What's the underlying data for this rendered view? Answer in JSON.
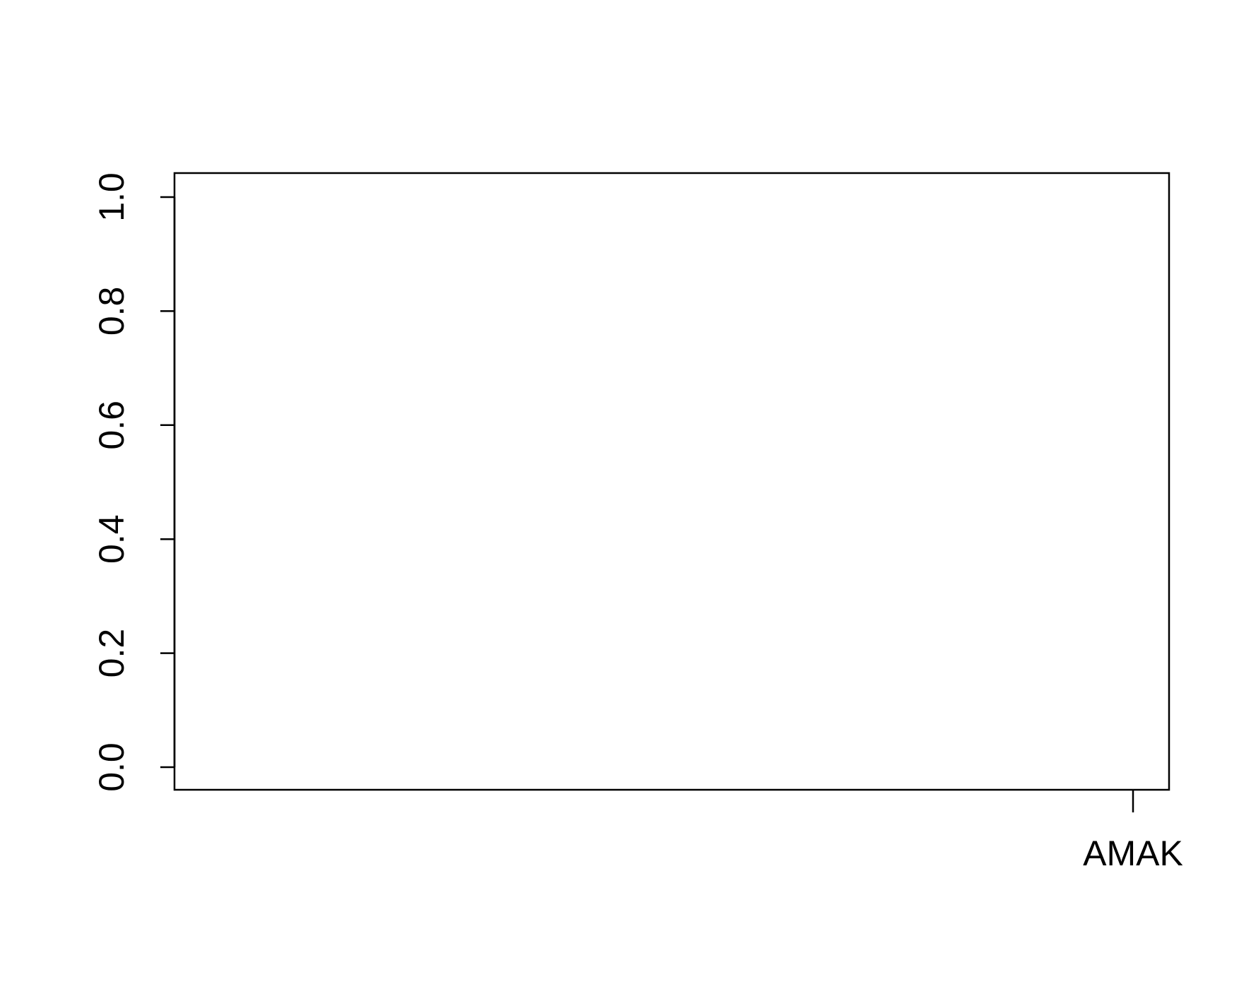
{
  "chart_data": {
    "type": "scatter",
    "title": "",
    "xlabel": "",
    "ylabel": "",
    "categories": [
      "AMAK"
    ],
    "x_ticks": [
      "AMAK"
    ],
    "y_ticks": [
      "0.0",
      "0.2",
      "0.4",
      "0.6",
      "0.8",
      "1.0"
    ],
    "ylim": [
      0.0,
      1.0
    ],
    "grid": false,
    "series": []
  },
  "colors": {
    "axis": "#000000",
    "background": "#ffffff"
  }
}
